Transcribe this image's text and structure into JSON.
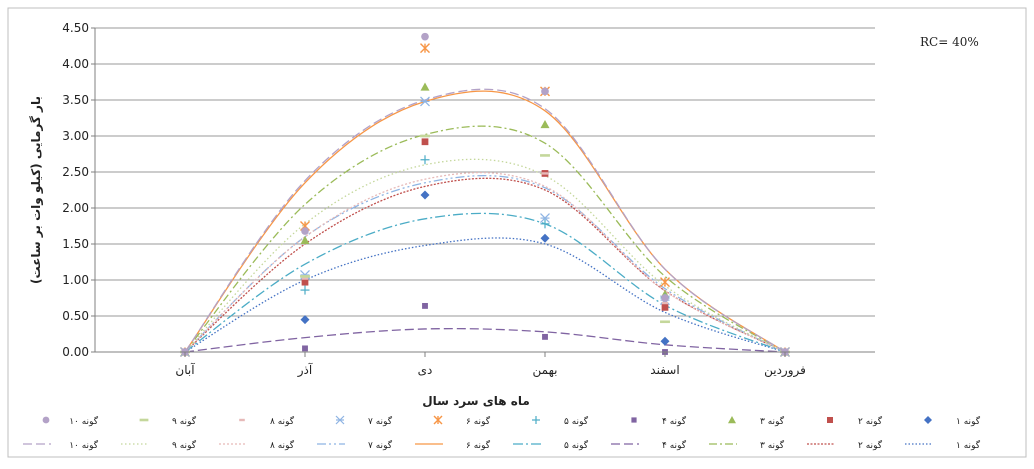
{
  "chart_data": {
    "type": "scatter",
    "title": "",
    "xlabel": "ماه های سرد سال",
    "ylabel": "بار گرمایی (کیلو وات بر ساعت)",
    "annotation": "RC= 40%",
    "categories": [
      "آبان",
      "آذر",
      "دی",
      "بهمن",
      "اسفند",
      "فروردین"
    ],
    "ylim": [
      0,
      4.5
    ],
    "y_ticks": [
      "0.00",
      "0.50",
      "1.00",
      "1.50",
      "2.00",
      "2.50",
      "3.00",
      "3.50",
      "4.00",
      "4.50"
    ],
    "grid": true,
    "legend_position": "bottom",
    "series": [
      {
        "name": "گونه ۱",
        "trend_name": "گونه ۱",
        "marker": "diamond",
        "color": "#4472C4",
        "values": [
          0,
          0.45,
          2.18,
          1.58,
          0.15,
          0
        ],
        "trend": [
          0,
          1.0,
          1.48,
          1.5,
          0.55,
          0
        ],
        "dash": "1.5,2"
      },
      {
        "name": "گونه ۲",
        "trend_name": "گونه ۲",
        "marker": "square",
        "color": "#C0504D",
        "values": [
          0,
          0.97,
          2.92,
          2.48,
          0.62,
          0
        ],
        "trend": [
          0,
          1.5,
          2.3,
          2.25,
          0.85,
          0
        ],
        "dash": "2,1.5"
      },
      {
        "name": "گونه ۳",
        "trend_name": "گونه ۳",
        "marker": "triangle",
        "color": "#9BBB59",
        "values": [
          0,
          1.55,
          3.68,
          3.16,
          0.8,
          0
        ],
        "trend": [
          0,
          2.05,
          3.02,
          2.9,
          1.05,
          0
        ],
        "dash": "8,3,2,3"
      },
      {
        "name": "گونه ۴",
        "trend_name": "گونه ۴",
        "marker": "square-small",
        "color": "#8064A2",
        "values": [
          0,
          0.05,
          0.64,
          0.21,
          0,
          0
        ],
        "trend": [
          0,
          0.2,
          0.32,
          0.28,
          0.1,
          0
        ],
        "dash": "9,4"
      },
      {
        "name": "گونه ۵",
        "trend_name": "گونه ۵",
        "marker": "plus",
        "color": "#4BACC6",
        "values": [
          0,
          0.86,
          2.67,
          1.78,
          0.75,
          0
        ],
        "trend": [
          0,
          1.22,
          1.85,
          1.78,
          0.65,
          0
        ],
        "dash": "10,3,2,3"
      },
      {
        "name": "گونه ۶",
        "trend_name": "گونه ۶",
        "marker": "asterisk",
        "color": "#F79646",
        "values": [
          0,
          1.75,
          4.22,
          3.62,
          0.97,
          0
        ],
        "trend": [
          0,
          2.35,
          3.48,
          3.35,
          1.15,
          0
        ],
        "dash": ""
      },
      {
        "name": "گونه ۷",
        "trend_name": "گونه ۷",
        "marker": "x-star",
        "color": "#8EB4E3",
        "values": [
          0,
          1.07,
          3.48,
          1.86,
          0.72,
          0
        ],
        "trend": [
          0,
          1.6,
          2.35,
          2.28,
          0.88,
          0
        ],
        "dash": "9,3,2,3,2,3"
      },
      {
        "name": "گونه ۸",
        "trend_name": "گونه ۸",
        "marker": "dash",
        "color": "#E6B9B8",
        "values": [
          0,
          1.02,
          3.0,
          2.48,
          0.68,
          0
        ],
        "trend": [
          0,
          1.6,
          2.4,
          2.3,
          0.85,
          0
        ],
        "dash": "2,2"
      },
      {
        "name": "گونه ۹",
        "trend_name": "گونه ۹",
        "marker": "long-dash",
        "color": "#C4D79B",
        "values": [
          0,
          1.05,
          3.0,
          2.73,
          0.42,
          0
        ],
        "trend": [
          0,
          1.78,
          2.6,
          2.45,
          0.92,
          0
        ],
        "dash": "1.5,2.5"
      },
      {
        "name": "گونه ۱۰",
        "trend_name": "گونه ۱۰",
        "marker": "circle",
        "color": "#B3A2C7",
        "values": [
          0,
          1.68,
          4.38,
          3.62,
          0.75,
          0
        ],
        "trend": [
          0,
          2.38,
          3.5,
          3.38,
          1.15,
          0
        ],
        "dash": "9,4"
      }
    ]
  }
}
